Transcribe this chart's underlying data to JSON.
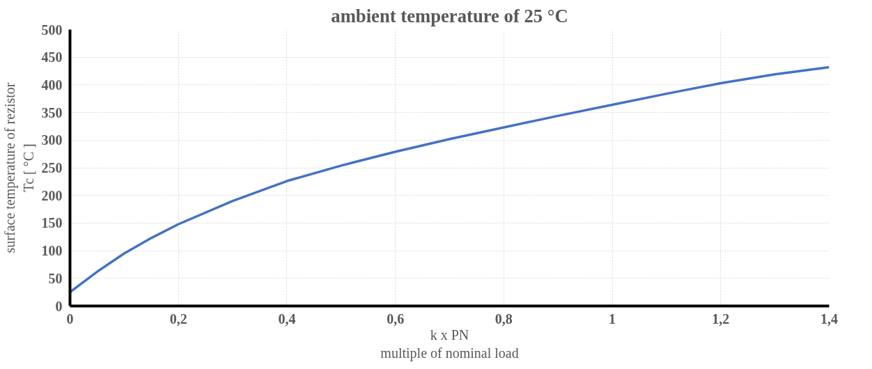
{
  "chart_data": {
    "type": "line",
    "title": "ambient temperature of 25 °C",
    "xlabel": "k x PN\nmultiple of nominal load",
    "ylabel": "surface temperature of rezistor\nTc [ °C ]",
    "x": [
      0,
      0.05,
      0.1,
      0.15,
      0.2,
      0.3,
      0.4,
      0.5,
      0.6,
      0.7,
      0.8,
      0.9,
      1.0,
      1.1,
      1.2,
      1.3,
      1.4
    ],
    "series": [
      {
        "color": "#4472c4",
        "values": [
          25,
          62,
          95,
          123,
          148,
          190,
          226,
          254,
          279,
          302,
          323,
          344,
          364,
          384,
          403,
          419,
          432
        ]
      }
    ],
    "xlim": [
      0,
      1.4
    ],
    "xticks": [
      0,
      {
        "value": 0.2,
        "label": "0,2"
      },
      {
        "value": 0.4,
        "label": "0,4"
      },
      {
        "value": 0.6,
        "label": "0,6"
      },
      {
        "value": 0.8,
        "label": "0,8"
      },
      1,
      {
        "value": 1.2,
        "label": "1,2"
      },
      {
        "value": 1.4,
        "label": "1,4"
      }
    ],
    "ylim": [
      0,
      500
    ],
    "yticks": [
      0,
      50,
      100,
      150,
      200,
      250,
      300,
      350,
      400,
      450,
      500
    ],
    "grid": true,
    "marker": "none",
    "line_style": "solid"
  }
}
